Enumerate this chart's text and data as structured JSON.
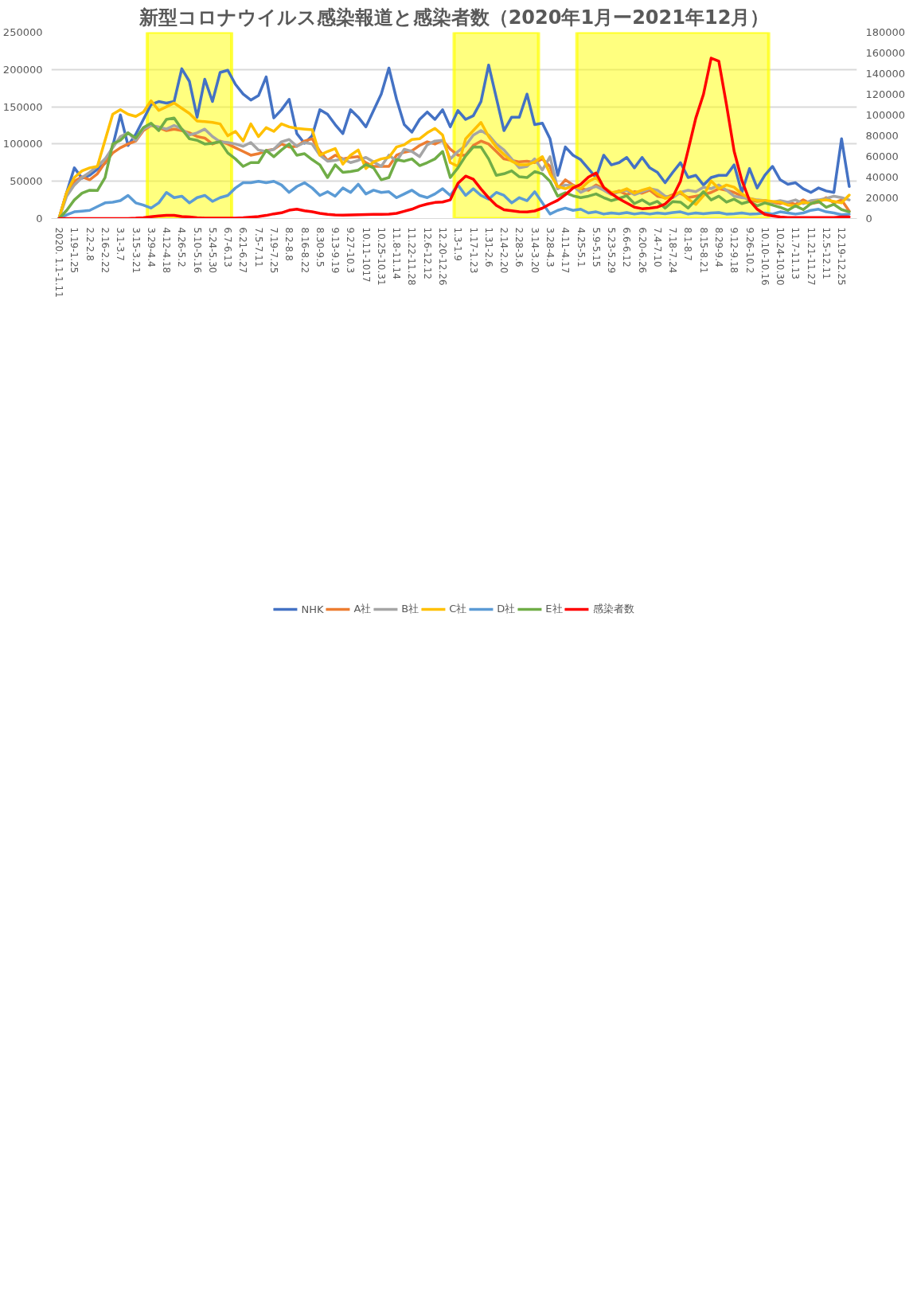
{
  "chart_data": {
    "type": "line",
    "title": "新型コロナウイルス感染報道と感染者数（2020年1月ー2021年12月）",
    "categories": [
      "2020.  1.1-1.11",
      null,
      "1.19-1.25",
      null,
      "2.2-2.8",
      null,
      "2.16-2.22",
      null,
      "3.1-3.7",
      null,
      "3.15-3.21",
      null,
      "3.29-4.4",
      null,
      "4.12-4.18",
      null,
      "4.26-5.2",
      null,
      "5.10-5.16",
      null,
      "5.24-5.30",
      null,
      "6.7-6.13",
      null,
      "6.21-6.27",
      null,
      "7.5-7.11",
      null,
      "7.19-7.25",
      null,
      "8.2-8.8",
      null,
      "8.16-8.22",
      null,
      "8.30-9.5",
      null,
      "9.13-9.19",
      null,
      "9.27-10.3",
      null,
      "10.11-1017",
      null,
      "10.25-10.31",
      null,
      "11.8-11.14",
      null,
      "11.22-11.28",
      null,
      "12.6-12.12",
      null,
      "12.20-12.26",
      null,
      "1.3-1.9",
      null,
      "1.17-1.23",
      null,
      "1.31-2.6",
      null,
      "2.14-2.20",
      null,
      "2.28-3.6",
      null,
      "3.14-3.20",
      null,
      "3.28-4.3",
      null,
      "4.11-4.17",
      null,
      "4.25-5.1",
      null,
      "5.9-5.15",
      null,
      "5.23-5.29",
      null,
      "6.6-6.12",
      null,
      "6.20-6.26",
      null,
      "7.4-7.10",
      null,
      "7.18-7.24",
      null,
      "8.1-8.7",
      null,
      "8.15-8.21",
      null,
      "8.29-9.4",
      null,
      "9.12-9.18",
      null,
      "9.26-10.2",
      null,
      "10.10-10.16",
      null,
      "10.24-10.30",
      null,
      "11.7-11.13",
      null,
      "11.21-11.27",
      null,
      "12.5-12.11",
      null,
      "12.19-12.25",
      null
    ],
    "series": [
      {
        "name": "NHK",
        "color": "#4472c4",
        "values": [
          0,
          35000,
          68000,
          54000,
          58000,
          66000,
          74000,
          97000,
          139000,
          98000,
          113000,
          133000,
          153000,
          157000,
          155000,
          157000,
          201000,
          184000,
          136000,
          187000,
          157000,
          196000,
          199000,
          180000,
          167000,
          159000,
          165000,
          190000,
          135000,
          146000,
          160000,
          114000,
          101000,
          111000,
          146000,
          140000,
          126000,
          114000,
          146000,
          136000,
          123000,
          145000,
          167000,
          202000,
          160000,
          126000,
          116000,
          133000,
          143000,
          133000,
          146000,
          123000,
          145000,
          133000,
          138000,
          157000,
          206000,
          162000,
          118000,
          136000,
          136000,
          167000,
          126000,
          128000,
          107000,
          58000,
          96000,
          85000,
          79000,
          67000,
          55000,
          85000,
          72000,
          75000,
          82000,
          68000,
          82000,
          68000,
          62000,
          48000,
          62000,
          75000,
          55000,
          58000,
          45000,
          55000,
          58000,
          58000,
          72000,
          35000,
          67000,
          41000,
          58000,
          70000,
          52000,
          46000,
          48000,
          40000,
          35000,
          41000,
          37000,
          35000,
          107000,
          43000
        ]
      },
      {
        "name": "A社",
        "color": "#ed7d31",
        "values": [
          0,
          35000,
          50000,
          56000,
          52000,
          60000,
          75000,
          88000,
          95000,
          100000,
          104000,
          118000,
          125000,
          122000,
          118000,
          120000,
          118000,
          115000,
          110000,
          108000,
          100000,
          104000,
          100000,
          95000,
          90000,
          85000,
          87000,
          91000,
          93000,
          100000,
          96000,
          97000,
          104000,
          107000,
          90000,
          78000,
          85000,
          80000,
          82000,
          83000,
          75000,
          70000,
          70000,
          70000,
          85000,
          89000,
          91000,
          98000,
          103000,
          100000,
          105000,
          93000,
          85000,
          85000,
          98000,
          104000,
          100000,
          90000,
          80000,
          78000,
          76000,
          77000,
          75000,
          80000,
          70000,
          40000,
          52000,
          45000,
          40000,
          38000,
          45000,
          40000,
          34000,
          37000,
          32000,
          36000,
          34000,
          38000,
          30000,
          28000,
          32000,
          34000,
          28000,
          30000,
          32000,
          35000,
          40000,
          38000,
          35000,
          30000,
          25000,
          23000,
          24000,
          22000,
          20000,
          22000,
          19000,
          25000,
          20000,
          22000,
          28000,
          21000,
          25000,
          10000
        ]
      },
      {
        "name": "B社",
        "color": "#a5a5a5",
        "values": [
          0,
          30000,
          45000,
          55000,
          62000,
          70000,
          80000,
          95000,
          110000,
          115000,
          105000,
          120000,
          125000,
          123000,
          120000,
          125000,
          120000,
          112000,
          115000,
          120000,
          110000,
          103000,
          102000,
          100000,
          97000,
          102000,
          92000,
          90000,
          93000,
          103000,
          106000,
          97000,
          102000,
          100000,
          85000,
          77000,
          78000,
          80000,
          75000,
          78000,
          82000,
          76000,
          70000,
          85000,
          77000,
          93000,
          90000,
          83000,
          99000,
          104000,
          105000,
          80000,
          90000,
          98000,
          112000,
          118000,
          112000,
          100000,
          92000,
          80000,
          68000,
          70000,
          80000,
          65000,
          83000,
          40000,
          45000,
          44000,
          35000,
          40000,
          43000,
          38000,
          32000,
          36000,
          38000,
          32000,
          36000,
          40000,
          38000,
          30000,
          28000,
          35000,
          38000,
          36000,
          42000,
          40000,
          45000,
          38000,
          30000,
          28000,
          27000,
          25000,
          24000,
          22000,
          24000,
          22000,
          25000,
          20000,
          24000,
          25000,
          27000,
          30000,
          28000,
          25000
        ]
      },
      {
        "name": "C社",
        "color": "#ffc000",
        "values": [
          0,
          35000,
          55000,
          64000,
          68000,
          70000,
          105000,
          140000,
          146000,
          140000,
          137000,
          143000,
          158000,
          145000,
          150000,
          155000,
          148000,
          141000,
          131000,
          130000,
          129000,
          127000,
          111000,
          117000,
          104000,
          127000,
          110000,
          122000,
          117000,
          127000,
          123000,
          121000,
          120000,
          119000,
          85000,
          90000,
          94000,
          73000,
          85000,
          92000,
          67000,
          76000,
          80000,
          82000,
          96000,
          99000,
          106000,
          107000,
          115000,
          121000,
          112000,
          75000,
          70000,
          107000,
          118000,
          129000,
          110000,
          96000,
          86000,
          77000,
          72000,
          72000,
          76000,
          83000,
          60000,
          43000,
          40000,
          44000,
          40000,
          49500,
          55000,
          42000,
          35000,
          36000,
          40000,
          34000,
          38000,
          41000,
          33000,
          27000,
          30000,
          36000,
          26000,
          19000,
          30500,
          50500,
          40000,
          45000,
          42000,
          33000,
          27000,
          24000,
          24000,
          23000,
          22000,
          18000,
          17000,
          22000,
          20000,
          24000,
          25000,
          23000,
          21000,
          31500
        ]
      },
      {
        "name": "D社",
        "color": "#5b9bd5",
        "values": [
          0,
          5000,
          9000,
          10000,
          11000,
          16000,
          21000,
          22000,
          24000,
          31000,
          21000,
          18000,
          14000,
          21000,
          35000,
          28000,
          30000,
          21000,
          28000,
          31000,
          23000,
          28000,
          31000,
          41000,
          48000,
          48000,
          50000,
          48000,
          50000,
          45000,
          35000,
          43000,
          48000,
          41000,
          31000,
          36000,
          30000,
          41000,
          35000,
          46000,
          33000,
          38000,
          35000,
          36000,
          28000,
          33000,
          38000,
          31000,
          28000,
          33000,
          40000,
          31000,
          45000,
          31000,
          40000,
          31000,
          26000,
          35000,
          31000,
          21000,
          28000,
          24000,
          36000,
          21000,
          6000,
          11000,
          14000,
          11000,
          12500,
          7500,
          9000,
          6000,
          7500,
          6500,
          8000,
          6000,
          7500,
          6000,
          7500,
          6500,
          8000,
          9000,
          6000,
          7500,
          6500,
          7500,
          8000,
          6000,
          6500,
          7500,
          6000,
          6500,
          7500,
          6000,
          9000,
          7500,
          6000,
          7500,
          11000,
          12500,
          9000,
          7500,
          5000,
          6000
        ]
      },
      {
        "name": "E社",
        "color": "#70ad47",
        "values": [
          0,
          11000,
          25000,
          34000,
          38000,
          37600,
          55000,
          100000,
          105000,
          115000,
          108000,
          122000,
          128000,
          118000,
          133000,
          135000,
          120000,
          107000,
          105000,
          100000,
          101000,
          103000,
          88000,
          80000,
          70000,
          75000,
          75000,
          91500,
          83000,
          92000,
          100000,
          85000,
          87000,
          79000,
          72000,
          55000,
          72000,
          62000,
          63000,
          65000,
          72500,
          68000,
          52000,
          55000,
          79000,
          77000,
          80000,
          71000,
          75000,
          80000,
          90000,
          55000,
          68000,
          84000,
          96000,
          96000,
          80000,
          58000,
          60000,
          64000,
          56000,
          55000,
          63000,
          60000,
          50000,
          30000,
          34600,
          30500,
          28000,
          30000,
          33000,
          28000,
          24000,
          27000,
          30500,
          20000,
          25000,
          19000,
          23000,
          14000,
          22700,
          22000,
          14000,
          25000,
          36000,
          25000,
          30000,
          22000,
          26000,
          20000,
          23000,
          17000,
          21000,
          18000,
          15000,
          11000,
          17000,
          12000,
          20000,
          23000,
          15000,
          19000,
          12000,
          9000
        ]
      },
      {
        "name": "感染者数",
        "color": "#ff0000",
        "axis": "y2",
        "values": [
          0,
          0,
          0,
          0,
          0,
          0,
          0,
          0,
          0,
          0,
          300,
          800,
          1700,
          2500,
          3000,
          3000,
          2000,
          1500,
          800,
          400,
          300,
          300,
          300,
          400,
          700,
          1300,
          2000,
          3000,
          4500,
          5500,
          8000,
          9000,
          7500,
          6500,
          5000,
          4000,
          3500,
          3300,
          3400,
          3600,
          3800,
          4000,
          4000,
          4200,
          5000,
          7000,
          9000,
          12000,
          14000,
          15500,
          16000,
          18000,
          34000,
          41000,
          38000,
          28500,
          20000,
          12700,
          8500,
          7500,
          6600,
          6300,
          7300,
          10000,
          14000,
          17600,
          23000,
          29500,
          33000,
          40000,
          44000,
          30000,
          24000,
          19000,
          15000,
          11000,
          9500,
          10000,
          11000,
          14000,
          21000,
          36000,
          66000,
          97000,
          120000,
          155000,
          152000,
          110000,
          65000,
          37000,
          17500,
          9000,
          4000,
          2500,
          1500,
          1000,
          1000,
          1000,
          1000,
          1000,
          1000,
          1000,
          1500,
          1500
        ]
      }
    ],
    "ylim": [
      0,
      250000
    ],
    "yticks": [
      0,
      50000,
      100000,
      150000,
      200000,
      250000
    ],
    "y2lim": [
      0,
      180000
    ],
    "y2ticks": [
      0,
      20000,
      40000,
      60000,
      80000,
      100000,
      120000,
      140000,
      160000,
      180000
    ],
    "bands": [
      {
        "axis": "x",
        "from": "3.29-4.4",
        "to": "6.7-6.13",
        "color": "#ffff00"
      },
      {
        "axis": "x",
        "from": "1.3-1.9",
        "to": "3.14-3.20",
        "color": "#ffff00"
      },
      {
        "axis": "x",
        "from": "4.25-5.1",
        "to": "10.10-10.16",
        "color": "#ffff00"
      }
    ],
    "grid": "y",
    "legend": "bottom",
    "line_style": "solid",
    "marker": "none"
  }
}
